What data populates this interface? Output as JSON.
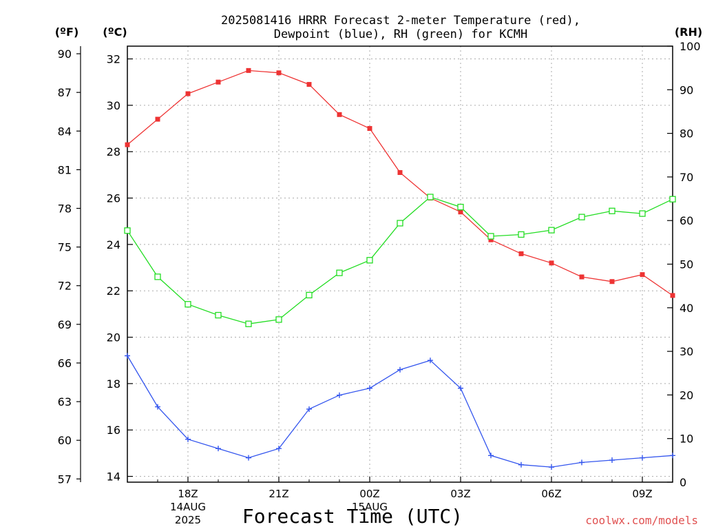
{
  "title_line1": "2025081416 HRRR Forecast 2-meter Temperature (red),",
  "title_line2": "Dewpoint (blue), RH (green) for KCMH",
  "unit_f": "(ºF)",
  "unit_c": "(ºC)",
  "unit_rh": "(RH)",
  "xlabel": "Forecast Time (UTC)",
  "credit": "coolwx.com/models",
  "colors": {
    "temp": "#ee3333",
    "dewpoint": "#3355ee",
    "rh": "#22dd22",
    "grid": "#aaaaaa"
  },
  "chart_data": {
    "type": "line",
    "x_hours_from_16Z": [
      0,
      1,
      2,
      3,
      4,
      5,
      6,
      7,
      8,
      9,
      10,
      11,
      12,
      13,
      14,
      15,
      16,
      17,
      18
    ],
    "x_ticks": [
      {
        "hour": 2,
        "label": "18Z",
        "sub1": "14AUG",
        "sub2": "2025"
      },
      {
        "hour": 5,
        "label": "21Z"
      },
      {
        "hour": 8,
        "label": "00Z",
        "sub1": "15AUG"
      },
      {
        "hour": 11,
        "label": "03Z"
      },
      {
        "hour": 14,
        "label": "06Z"
      },
      {
        "hour": 17,
        "label": "09Z"
      }
    ],
    "ylim_c": [
      13.75,
      32.55
    ],
    "ylim_rh": [
      0,
      100
    ],
    "y_ticks_c": [
      14,
      16,
      18,
      20,
      22,
      24,
      26,
      28,
      30,
      32
    ],
    "y_ticks_f": [
      57,
      60,
      63,
      66,
      69,
      72,
      75,
      78,
      81,
      84,
      87,
      90
    ],
    "y_ticks_rh": [
      0,
      10,
      20,
      30,
      40,
      50,
      60,
      70,
      80,
      90,
      100
    ],
    "series": [
      {
        "name": "Temperature",
        "unit": "C",
        "marker": "filled-square",
        "values": [
          28.3,
          29.4,
          30.5,
          31.0,
          31.5,
          31.4,
          30.9,
          29.6,
          29.0,
          27.1,
          26.0,
          25.4,
          24.2,
          23.6,
          23.2,
          22.6,
          22.4,
          22.7,
          21.8
        ]
      },
      {
        "name": "Dewpoint",
        "unit": "C",
        "marker": "plus",
        "values": [
          19.2,
          17.0,
          15.6,
          15.2,
          14.8,
          15.2,
          16.9,
          17.5,
          17.8,
          18.6,
          19.0,
          17.8,
          14.9,
          14.5,
          14.4,
          14.6,
          14.7,
          14.8,
          14.9
        ]
      },
      {
        "name": "RH",
        "unit": "%",
        "marker": "open-square",
        "values": [
          57.7,
          47.1,
          40.8,
          38.3,
          36.3,
          37.3,
          42.9,
          48.0,
          50.9,
          59.4,
          65.4,
          63.1,
          56.4,
          56.8,
          57.8,
          60.8,
          62.2,
          61.6,
          64.9
        ]
      }
    ]
  }
}
